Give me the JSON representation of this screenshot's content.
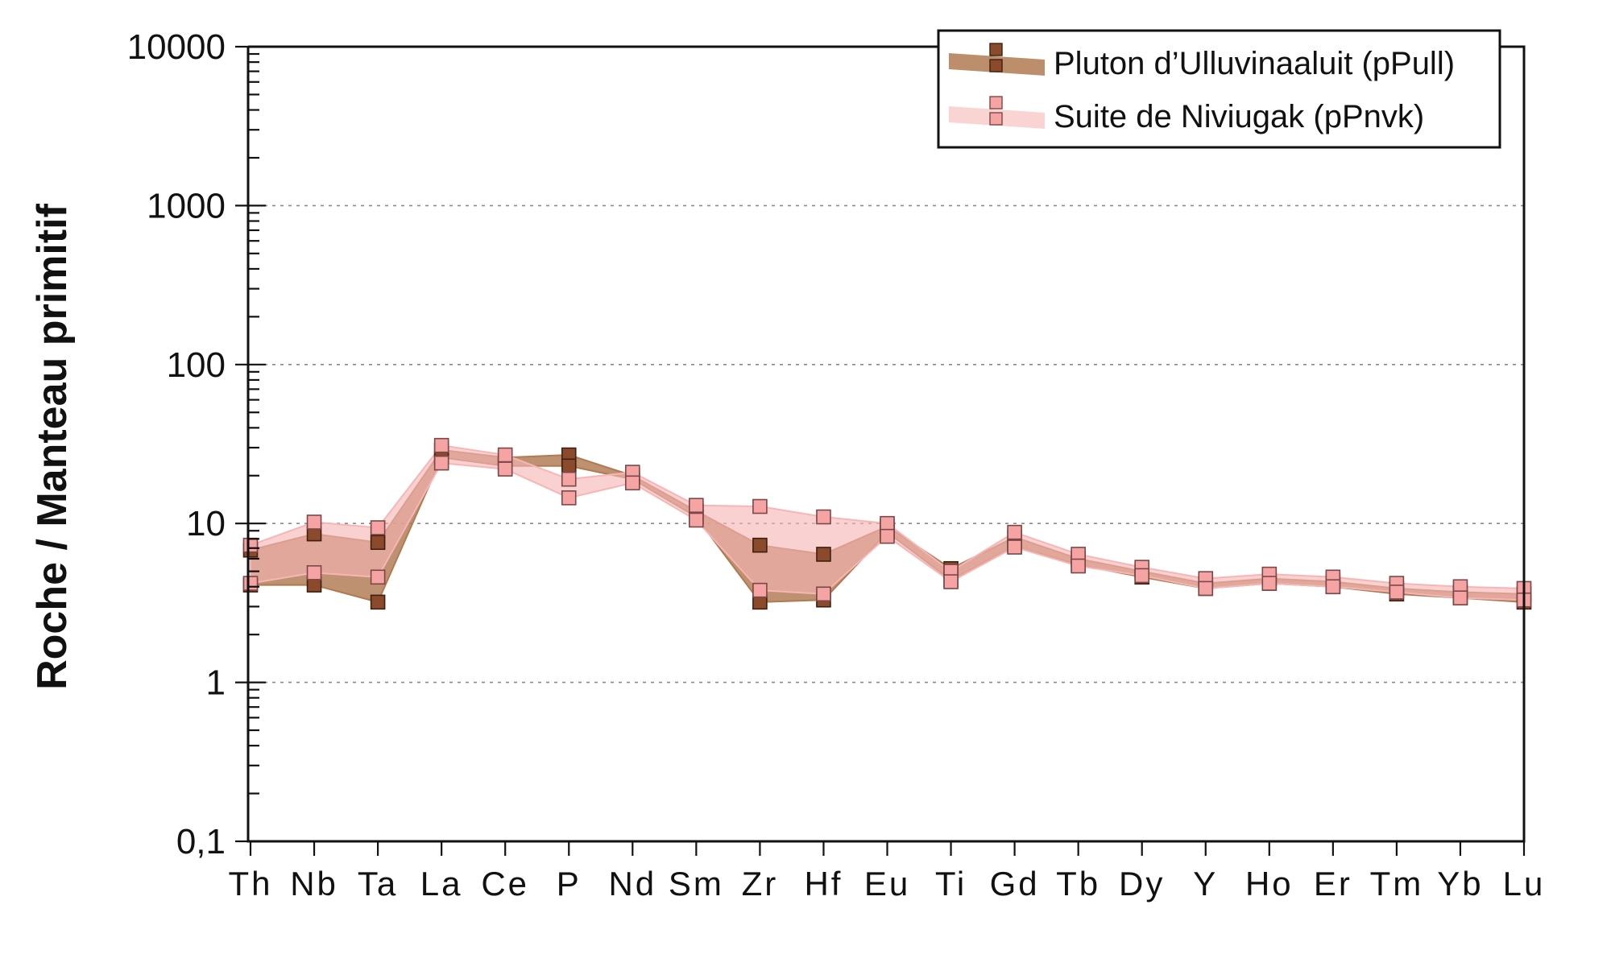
{
  "chart_data": {
    "type": "line",
    "ylabel": "Roche / Manteau primitif",
    "xlabel": "",
    "yscale": "log",
    "ylim": [
      0.1,
      10000
    ],
    "yticks": [
      {
        "value": 10000,
        "label": "10000"
      },
      {
        "value": 1000,
        "label": "1000"
      },
      {
        "value": 100,
        "label": "100"
      },
      {
        "value": 10,
        "label": "10"
      },
      {
        "value": 1,
        "label": "1"
      },
      {
        "value": 0.1,
        "label": "0,1"
      }
    ],
    "grid": "dashed horizontal at major decades",
    "categories": [
      "Th",
      "Nb",
      "Ta",
      "La",
      "Ce",
      "P",
      "Nd",
      "Sm",
      "Zr",
      "Hf",
      "Eu",
      "Ti",
      "Gd",
      "Tb",
      "Dy",
      "Y",
      "Ho",
      "Er",
      "Tm",
      "Yb",
      "Lu"
    ],
    "legend_position": "top-right",
    "series": [
      {
        "name": "Pluton d’Ulluvinaaluit (pPull)",
        "fill_color": "#b07a52",
        "marker_color": "#8b4a2b",
        "upper": [
          6.8,
          8.6,
          7.6,
          29,
          26,
          27,
          20,
          12,
          7.3,
          6.4,
          9.6,
          5.2,
          8.2,
          6.0,
          5.0,
          4.2,
          4.5,
          4.3,
          3.9,
          3.7,
          3.6
        ],
        "lower": [
          4.1,
          4.1,
          3.2,
          26,
          23,
          23,
          19,
          11,
          3.2,
          3.3,
          8.8,
          4.4,
          7.2,
          5.5,
          4.6,
          3.9,
          4.2,
          4.0,
          3.6,
          3.4,
          3.2
        ]
      },
      {
        "name": "Suite de Niviugak (pPnvk)",
        "fill_color": "#f7b5b5",
        "marker_color": "#f6a3a3",
        "upper": [
          7.3,
          10.2,
          9.4,
          31,
          27,
          19,
          21,
          13,
          12.8,
          11,
          10,
          5.0,
          8.8,
          6.4,
          5.3,
          4.5,
          4.8,
          4.6,
          4.2,
          4.0,
          3.9
        ],
        "lower": [
          4.2,
          4.9,
          4.6,
          24,
          22,
          14.5,
          18,
          10.5,
          3.8,
          3.6,
          8.3,
          4.3,
          7.1,
          5.4,
          4.7,
          3.9,
          4.2,
          4.0,
          3.7,
          3.4,
          3.3
        ]
      }
    ]
  }
}
